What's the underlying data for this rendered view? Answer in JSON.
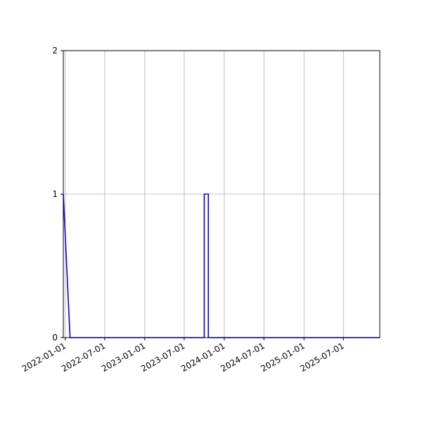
{
  "chart_data": {
    "type": "line",
    "title": "",
    "xlabel": "",
    "ylabel": "",
    "x_axis": {
      "scale": "date",
      "range": [
        "2021-12-23",
        "2025-12-15"
      ],
      "ticks": [
        "2022-01-01",
        "2022-07-01",
        "2023-01-01",
        "2023-07-01",
        "2024-01-01",
        "2024-07-01",
        "2025-01-01",
        "2025-07-01"
      ],
      "tick_label_rotation": 30
    },
    "y_axis": {
      "range": [
        0,
        2
      ],
      "ticks": [
        "0",
        "1",
        "2"
      ]
    },
    "grid": true,
    "series": [
      {
        "color": "#0000ff",
        "points": [
          {
            "x": "2021-12-23",
            "y": 1
          },
          {
            "x": "2022-01-23",
            "y": 0
          },
          {
            "x": "2023-10-01",
            "y": 0
          },
          {
            "x": "2023-10-01",
            "y": 1
          },
          {
            "x": "2023-10-20",
            "y": 1
          },
          {
            "x": "2023-10-20",
            "y": 0
          },
          {
            "x": "2025-12-15",
            "y": 0
          }
        ]
      }
    ]
  }
}
